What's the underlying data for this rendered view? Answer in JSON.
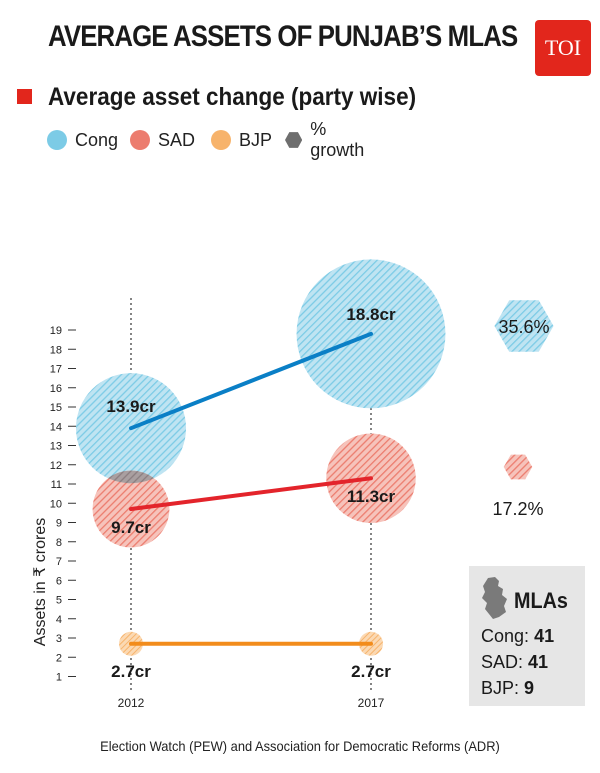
{
  "header": {
    "title": "AVERAGE ASSETS OF PUNJAB’S MLAS",
    "logo": "TOI",
    "subtitle": "Average asset change (party wise)"
  },
  "legend": [
    {
      "label": "Cong",
      "color": "#7ccbe6",
      "shape": "circle"
    },
    {
      "label": "SAD",
      "color": "#ec7c6e",
      "shape": "circle"
    },
    {
      "label": "BJP",
      "color": "#f7b36b",
      "shape": "circle"
    },
    {
      "label": "% growth",
      "color": "#6e6e6e",
      "shape": "hexagon"
    }
  ],
  "chart_data": {
    "type": "line",
    "ylabel": "Assets in ₹ crores",
    "y_ticks": [
      1,
      2,
      3,
      4,
      5,
      6,
      7,
      8,
      9,
      10,
      11,
      12,
      13,
      14,
      15,
      16,
      17,
      18,
      19
    ],
    "categories": [
      "2012",
      "2017"
    ],
    "series": [
      {
        "name": "Cong",
        "values": [
          13.9,
          18.8
        ],
        "labels": [
          "13.9cr",
          "18.8cr"
        ],
        "color": "#0a7fc6",
        "bubble": "#7ccbe6"
      },
      {
        "name": "SAD",
        "values": [
          9.7,
          11.3
        ],
        "labels": [
          "9.7cr",
          "11.3cr"
        ],
        "color": "#e3242b",
        "bubble": "#ec7c6e"
      },
      {
        "name": "BJP",
        "values": [
          2.7,
          2.7
        ],
        "labels": [
          "2.7cr",
          "2.7cr"
        ],
        "color": "#f28c1c",
        "bubble": "#f7b36b"
      }
    ],
    "growth": [
      {
        "party": "Cong",
        "value": 35.6,
        "label": "35.6%",
        "color": "#7ccbe6"
      },
      {
        "party": "SAD",
        "value": 17.2,
        "label": "17.2%",
        "color": "#ec7c6e"
      }
    ]
  },
  "mlas": {
    "title": "MLAs",
    "rows": [
      {
        "party": "Cong:",
        "count": "41"
      },
      {
        "party": "SAD:",
        "count": "41"
      },
      {
        "party": "BJP:",
        "count": "9"
      }
    ]
  },
  "source": "Election Watch (PEW) and Association for Democratic Reforms (ADR)"
}
